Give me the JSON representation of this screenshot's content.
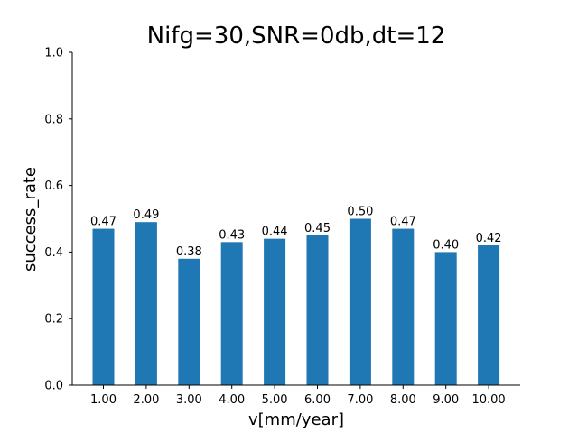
{
  "chart_data": {
    "type": "bar",
    "title": "Nifg=30,SNR=0db,dt=12",
    "xlabel": "v[mm/year]",
    "ylabel": "success_rate",
    "categories": [
      "1.00",
      "2.00",
      "3.00",
      "4.00",
      "5.00",
      "6.00",
      "7.00",
      "8.00",
      "9.00",
      "10.00"
    ],
    "values": [
      0.47,
      0.49,
      0.38,
      0.43,
      0.44,
      0.45,
      0.5,
      0.47,
      0.4,
      0.42
    ],
    "data_labels": [
      "0.47",
      "0.49",
      "0.38",
      "0.43",
      "0.44",
      "0.45",
      "0.50",
      "0.47",
      "0.40",
      "0.42"
    ],
    "ylim": [
      0,
      1.0
    ],
    "yticks": [
      "0.0",
      "0.2",
      "0.4",
      "0.6",
      "0.8",
      "1.0"
    ],
    "bar_color": "#1f77b4",
    "grid": false,
    "legend": "none"
  }
}
